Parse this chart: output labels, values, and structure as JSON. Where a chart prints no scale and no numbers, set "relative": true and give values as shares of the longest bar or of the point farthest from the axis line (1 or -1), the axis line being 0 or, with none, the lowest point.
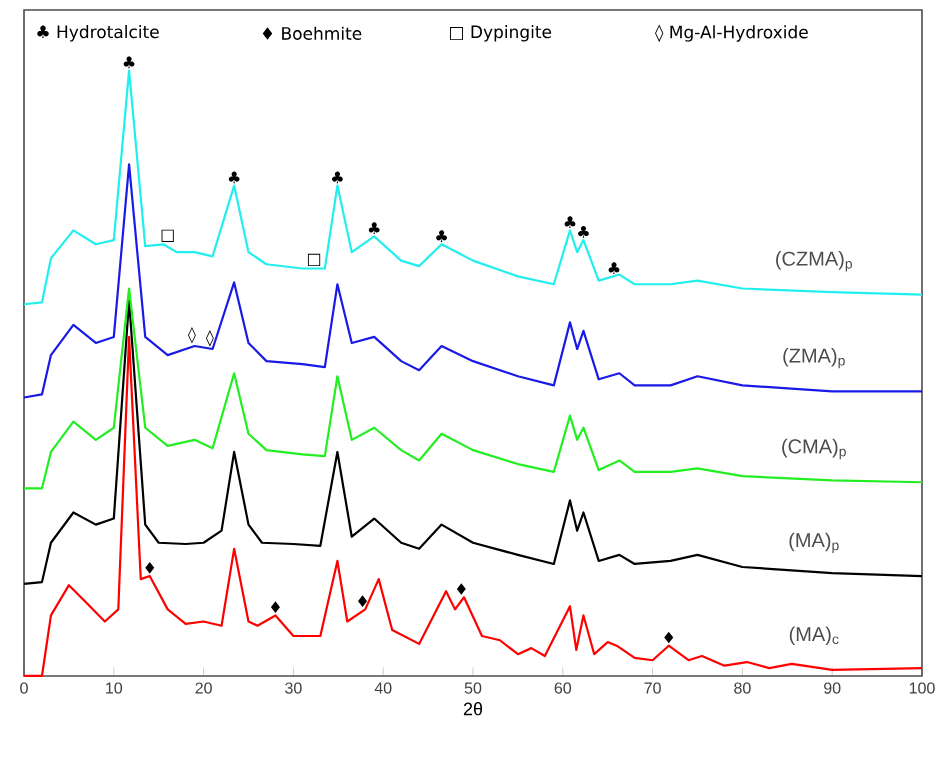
{
  "chart_data": {
    "type": "line",
    "relative": true,
    "xlabel": "2θ",
    "xlim": [
      0,
      100
    ],
    "xticks": [
      0,
      10,
      20,
      30,
      40,
      50,
      60,
      70,
      80,
      90,
      100
    ],
    "series": [
      {
        "name": "(MA)$_{c}$",
        "color": "#ff0000",
        "x": [
          0,
          2,
          3,
          5,
          7,
          9,
          10.5,
          11.7,
          13,
          14,
          16,
          18,
          20,
          22,
          23.4,
          25,
          26,
          28,
          30,
          33,
          34.9,
          36,
          38,
          39.5,
          41,
          44,
          47,
          48,
          49,
          51,
          53,
          55,
          56.5,
          58,
          60.8,
          61.5,
          62.3,
          63.5,
          65,
          66,
          68,
          70,
          71.8,
          74,
          75.5,
          78,
          80.5,
          83,
          85.5,
          90,
          100
        ],
        "values": [
          0,
          0,
          0.1,
          0.15,
          0.12,
          0.09,
          0.11,
          0.56,
          0.16,
          0.165,
          0.11,
          0.086,
          0.09,
          0.083,
          0.21,
          0.09,
          0.083,
          0.1,
          0.066,
          0.066,
          0.19,
          0.09,
          0.11,
          0.16,
          0.076,
          0.053,
          0.14,
          0.11,
          0.13,
          0.066,
          0.059,
          0.036,
          0.046,
          0.033,
          0.115,
          0.043,
          0.1,
          0.036,
          0.056,
          0.05,
          0.03,
          0.026,
          0.05,
          0.026,
          0.033,
          0.017,
          0.023,
          0.013,
          0.02,
          0.01,
          0.013
        ]
      },
      {
        "name": "(MA)$_{p}$",
        "color": "#000000",
        "x": [
          0,
          2,
          3,
          5.5,
          8,
          10,
          11.7,
          13.5,
          15,
          18,
          20,
          22,
          23.4,
          25,
          26.5,
          30,
          33,
          34.9,
          36.5,
          39,
          42,
          44,
          46.5,
          50,
          55,
          59,
          60.8,
          61.6,
          62.3,
          64,
          66.3,
          68,
          72,
          75,
          80,
          90,
          100
        ],
        "values": [
          0.152,
          0.155,
          0.22,
          0.27,
          0.25,
          0.26,
          0.62,
          0.25,
          0.22,
          0.218,
          0.22,
          0.24,
          0.37,
          0.25,
          0.22,
          0.218,
          0.215,
          0.37,
          0.23,
          0.26,
          0.22,
          0.21,
          0.25,
          0.22,
          0.2,
          0.185,
          0.29,
          0.24,
          0.27,
          0.19,
          0.2,
          0.185,
          0.19,
          0.2,
          0.18,
          0.17,
          0.165
        ]
      },
      {
        "name": "(CMA)$_{p}$",
        "color": "#22ee22",
        "x": [
          0,
          2,
          3,
          5.5,
          8,
          10,
          11.7,
          13.5,
          16,
          19,
          21,
          23.4,
          25,
          27,
          31,
          33.5,
          34.9,
          36.5,
          39,
          42,
          44,
          46.5,
          50,
          55,
          59,
          60.8,
          61.6,
          62.3,
          64,
          66.3,
          68,
          72,
          75,
          80,
          90,
          100
        ],
        "values": [
          0.31,
          0.31,
          0.37,
          0.42,
          0.39,
          0.41,
          0.64,
          0.41,
          0.38,
          0.39,
          0.376,
          0.5,
          0.4,
          0.373,
          0.366,
          0.363,
          0.495,
          0.39,
          0.41,
          0.373,
          0.356,
          0.4,
          0.373,
          0.35,
          0.337,
          0.43,
          0.39,
          0.41,
          0.34,
          0.356,
          0.337,
          0.337,
          0.343,
          0.33,
          0.323,
          0.32
        ]
      },
      {
        "name": "(ZMA)$_{p}$",
        "color": "#1a1ae6",
        "x": [
          0,
          2,
          3,
          5.5,
          8,
          10,
          11.7,
          13.5,
          16,
          19,
          21,
          23.4,
          25,
          27,
          31,
          33.5,
          34.9,
          36.5,
          39,
          42,
          44,
          46.5,
          50,
          55,
          59,
          60.8,
          61.6,
          62.3,
          64,
          66.3,
          68,
          72,
          75,
          80,
          90,
          100
        ],
        "values": [
          0.46,
          0.465,
          0.53,
          0.58,
          0.55,
          0.56,
          0.845,
          0.56,
          0.53,
          0.545,
          0.54,
          0.65,
          0.55,
          0.52,
          0.515,
          0.51,
          0.647,
          0.55,
          0.56,
          0.52,
          0.505,
          0.545,
          0.52,
          0.495,
          0.48,
          0.584,
          0.54,
          0.57,
          0.49,
          0.5,
          0.48,
          0.48,
          0.495,
          0.48,
          0.47,
          0.47
        ]
      },
      {
        "name": "(CZMA)$_{p}$",
        "color": "#22eeee",
        "x": [
          0,
          2,
          3,
          5.5,
          8,
          10,
          11.7,
          13.5,
          15.5,
          17,
          19,
          21,
          23.4,
          25,
          27,
          31,
          33.5,
          34.9,
          36.5,
          39,
          42,
          44,
          46.5,
          50,
          55,
          59,
          60.8,
          61.6,
          62.3,
          64,
          66.3,
          68,
          72,
          75,
          80,
          90,
          100
        ],
        "values": [
          0.614,
          0.617,
          0.69,
          0.736,
          0.713,
          0.72,
          1.0,
          0.71,
          0.713,
          0.7,
          0.7,
          0.693,
          0.81,
          0.7,
          0.68,
          0.673,
          0.673,
          0.81,
          0.7,
          0.726,
          0.686,
          0.677,
          0.713,
          0.686,
          0.66,
          0.647,
          0.736,
          0.7,
          0.72,
          0.653,
          0.663,
          0.647,
          0.647,
          0.653,
          0.64,
          0.634,
          0.63
        ]
      }
    ],
    "annotations": [
      "♣ Hydrotalcite",
      "♦ Boehmite",
      "□ Dypingite",
      "◊ Mg-Al-Hydroxide",
      {
        "text": "♣",
        "x": 11.7,
        "y": 1.0
      },
      {
        "text": "♣",
        "x": 23.4,
        "y": 0.81
      },
      {
        "text": "♣",
        "x": 34.9,
        "y": 0.81
      },
      {
        "text": "♣",
        "x": 39,
        "y": 0.726
      },
      {
        "text": "♣",
        "x": 46.5,
        "y": 0.713
      },
      {
        "text": "♣",
        "x": 60.8,
        "y": 0.736
      },
      {
        "text": "♣",
        "x": 62.3,
        "y": 0.72
      },
      {
        "text": "♣",
        "x": 65.7,
        "y": 0.66
      },
      {
        "text": "□",
        "x": 16,
        "y": 0.713
      },
      {
        "text": "□",
        "x": 32.3,
        "y": 0.673
      },
      {
        "text": "◊",
        "x": 18.7,
        "y": 0.545
      },
      {
        "text": "◊",
        "x": 20.7,
        "y": 0.54
      },
      {
        "text": "♦",
        "x": 14,
        "y": 0.165
      },
      {
        "text": "♦",
        "x": 28,
        "y": 0.1
      },
      {
        "text": "♦",
        "x": 37.7,
        "y": 0.11
      },
      {
        "text": "♦",
        "x": 48.7,
        "y": 0.13
      },
      {
        "text": "♦",
        "x": 71.8,
        "y": 0.05
      }
    ]
  }
}
